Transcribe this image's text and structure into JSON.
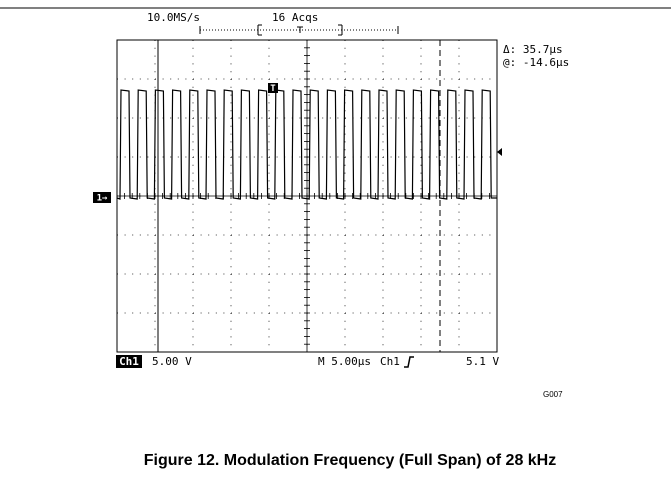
{
  "header": {
    "sample_rate": "10.0MS/s",
    "acquisitions": "16 Acqs"
  },
  "cursor": {
    "delta": "Δ: 35.7µs",
    "at": "@: -14.6µs"
  },
  "trigger_marker": "T",
  "channel_marker": "1→",
  "footer": {
    "channel": "Ch1",
    "scale": "5.00 V",
    "timebase": "M 5.00µs",
    "trigger_source": "Ch1",
    "trigger_level": "5.1 V"
  },
  "figure_id": "G007",
  "caption": "Figure 12. Modulation Frequency (Full Span) of 28 kHz"
}
